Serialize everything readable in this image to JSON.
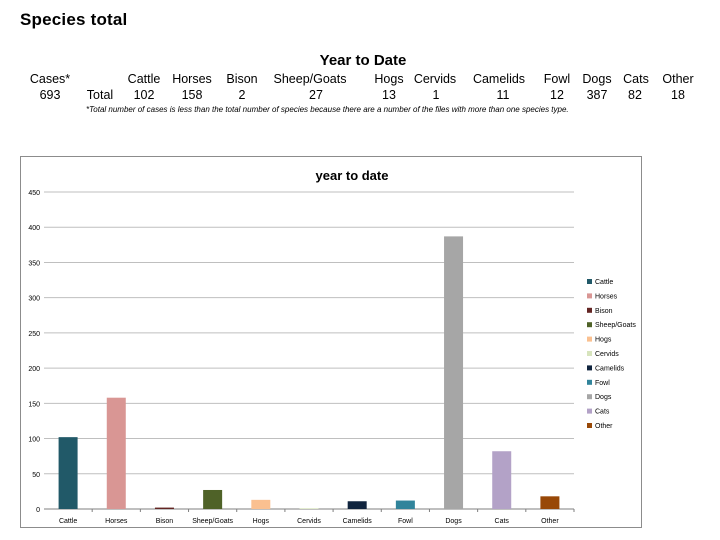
{
  "page_title": "Species total",
  "summary": {
    "heading": "Year to Date",
    "cases_label": "Cases*",
    "cases_value": "693",
    "total_label": "Total",
    "columns": [
      {
        "label": "Cattle",
        "value": "102"
      },
      {
        "label": "Horses",
        "value": "158"
      },
      {
        "label": "Bison",
        "value": "2"
      },
      {
        "label": "Sheep/Goats",
        "value": "27"
      },
      {
        "label": "Hogs",
        "value": "13"
      },
      {
        "label": "Cervids",
        "value": "1"
      },
      {
        "label": "Camelids",
        "value": "11"
      },
      {
        "label": "Fowl",
        "value": "12"
      },
      {
        "label": "Dogs",
        "value": "387"
      },
      {
        "label": "Cats",
        "value": "82"
      },
      {
        "label": "Other",
        "value": "18"
      }
    ],
    "footnote": "*Total number of cases is less than the total number of species because there are a number of the files with more than one species type."
  },
  "chart_data": {
    "type": "bar",
    "title": "year to date",
    "xlabel": "",
    "ylabel": "",
    "categories": [
      "Cattle",
      "Horses",
      "Bison",
      "Sheep/Goats",
      "Hogs",
      "Cervids",
      "Camelids",
      "Fowl",
      "Dogs",
      "Cats",
      "Other"
    ],
    "values": [
      102,
      158,
      2,
      27,
      13,
      1,
      11,
      12,
      387,
      82,
      18
    ],
    "colors": [
      "#215968",
      "#d99694",
      "#632523",
      "#4f6228",
      "#fac090",
      "#d7e4bd",
      "#10243e",
      "#31849b",
      "#a6a6a6",
      "#b3a2c7",
      "#984807"
    ],
    "ylim": [
      0,
      450
    ],
    "yticks": [
      0,
      50,
      100,
      150,
      200,
      250,
      300,
      350,
      400,
      450
    ],
    "grid": true,
    "legend": {
      "position": "right",
      "entries": [
        "Cattle",
        "Horses",
        "Bison",
        "Sheep/Goats",
        "Hogs",
        "Cervids",
        "Camelids",
        "Fowl",
        "Dogs",
        "Cats",
        "Other"
      ]
    }
  }
}
